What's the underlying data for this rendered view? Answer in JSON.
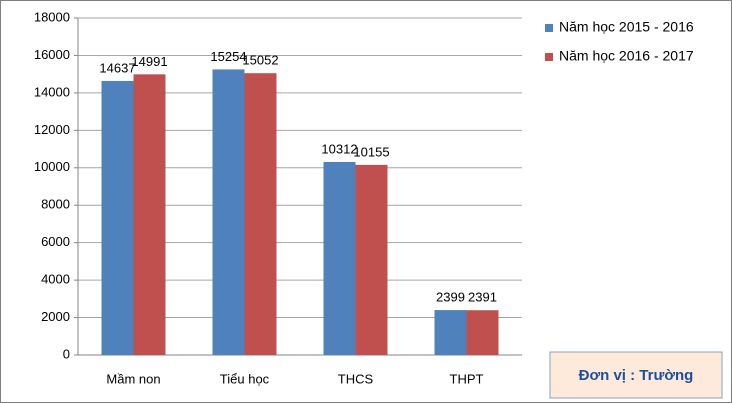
{
  "chart_data": {
    "type": "bar",
    "categories": [
      "Mầm non",
      "Tiểu học",
      "THCS",
      "THPT"
    ],
    "series": [
      {
        "name": "Năm học 2015 - 2016",
        "color": "#4f81bd",
        "values": [
          14637,
          15254,
          10312,
          2399
        ]
      },
      {
        "name": "Năm học 2016 - 2017",
        "color": "#c0504d",
        "values": [
          14991,
          15052,
          10155,
          2391
        ]
      }
    ],
    "ylim": [
      0,
      18000
    ],
    "yticks": [
      0,
      2000,
      4000,
      6000,
      8000,
      10000,
      12000,
      14000,
      16000,
      18000
    ],
    "grid": true,
    "legend": "right",
    "data_labels": true,
    "annotation": "Đơn vị : Trường"
  }
}
